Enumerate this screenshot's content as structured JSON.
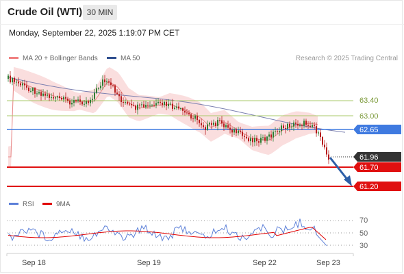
{
  "header": {
    "title": "Crude Oil (WTI)",
    "timeframe": "30 MIN"
  },
  "datetime": "Monday, September 22, 2025 1:19:07 PM CET",
  "legend": {
    "bb": {
      "label": "MA 20 + Bollinger Bands",
      "color": "#f08080"
    },
    "ma50": {
      "label": "MA 50",
      "color": "#2f4f8f"
    },
    "research": "Research © 2025 Trading Central"
  },
  "rsi_legend": {
    "rsi": {
      "label": "RSI",
      "color": "#5b7fd8"
    },
    "ma": {
      "label": "9MA",
      "color": "#e00000"
    }
  },
  "price_levels": {
    "r2": {
      "label": "63.40",
      "value": 63.4,
      "color": "#a9c96a"
    },
    "r1": {
      "label": "63.00",
      "value": 63.0,
      "color": "#a9c96a"
    },
    "pivot": {
      "label": "62.65",
      "value": 62.65,
      "color": "#3f7ae0"
    },
    "last": {
      "label": "61.96",
      "value": 61.96,
      "color": "#333333"
    },
    "s1": {
      "label": "61.70",
      "value": 61.7,
      "color": "#e01010"
    },
    "s2": {
      "label": "61.20",
      "value": 61.2,
      "color": "#e01010"
    }
  },
  "rsi_ticks": [
    "70",
    "50",
    "30"
  ],
  "x_labels": [
    "Sep 18",
    "Sep 19",
    "Sep 22",
    "Sep 23"
  ],
  "colors": {
    "bull": "#2e7d32",
    "bear": "#b71c1c",
    "arrow": "#2d5fa8",
    "band": "#f6c3c3"
  }
}
